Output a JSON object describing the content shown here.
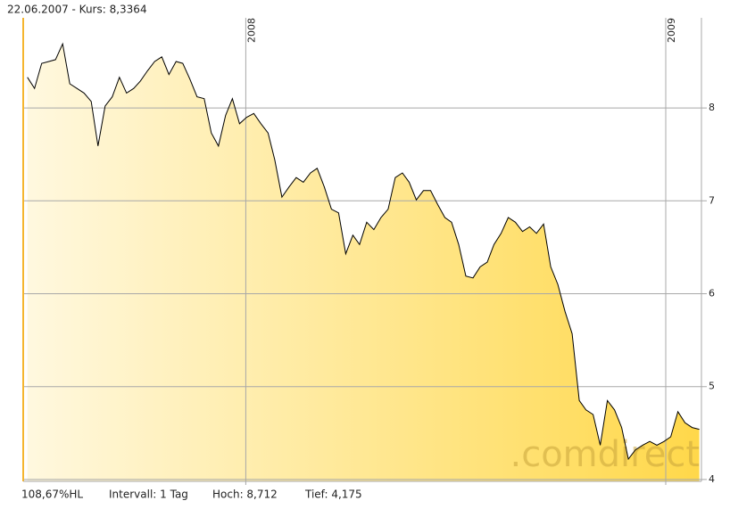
{
  "chart_data": {
    "type": "area",
    "header": "22.06.2007  -  Kurs: 8,3364",
    "footer": [
      "108,67%HL",
      "Intervall: 1 Tag",
      "Hoch: 8,712",
      "Tief: 4,175"
    ],
    "watermark": ".comdirect",
    "color": "#000000",
    "fill_colors": [
      "#fff8df",
      "#ffd84a"
    ],
    "grid": true,
    "xlim": [
      2007.47,
      2009.085
    ],
    "xticks": [
      2008,
      2009
    ],
    "ylim": [
      3.98,
      8.97
    ],
    "yticks": [
      4,
      5,
      6,
      7,
      8
    ],
    "x": [
      2007.48,
      2007.497,
      2007.514,
      2007.531,
      2007.547,
      2007.564,
      2007.581,
      2007.598,
      2007.615,
      2007.632,
      2007.648,
      2007.665,
      2007.682,
      2007.699,
      2007.716,
      2007.733,
      2007.749,
      2007.766,
      2007.783,
      2007.8,
      2007.817,
      2007.834,
      2007.85,
      2007.867,
      2007.884,
      2007.901,
      2007.918,
      2007.935,
      2007.952,
      2007.968,
      2007.985,
      2008.002,
      2008.019,
      2008.036,
      2008.053,
      2008.069,
      2008.086,
      2008.103,
      2008.12,
      2008.137,
      2008.154,
      2008.17,
      2008.187,
      2008.204,
      2008.221,
      2008.238,
      2008.255,
      2008.271,
      2008.288,
      2008.305,
      2008.322,
      2008.339,
      2008.356,
      2008.373,
      2008.389,
      2008.406,
      2008.423,
      2008.44,
      2008.457,
      2008.474,
      2008.49,
      2008.507,
      2008.524,
      2008.541,
      2008.558,
      2008.575,
      2008.591,
      2008.608,
      2008.625,
      2008.642,
      2008.659,
      2008.676,
      2008.692,
      2008.709,
      2008.726,
      2008.743,
      2008.76,
      2008.777,
      2008.794,
      2008.81,
      2008.827,
      2008.844,
      2008.861,
      2008.878,
      2008.895,
      2008.911,
      2008.928,
      2008.945,
      2008.962,
      2008.979,
      2008.996,
      2009.012,
      2009.029,
      2009.046,
      2009.063,
      2009.08
    ],
    "values": [
      8.33,
      8.21,
      8.48,
      8.5,
      8.52,
      8.69,
      8.26,
      8.21,
      8.16,
      8.07,
      7.59,
      8.02,
      8.12,
      8.33,
      8.16,
      8.21,
      8.29,
      8.4,
      8.5,
      8.55,
      8.36,
      8.5,
      8.48,
      8.31,
      8.12,
      8.1,
      7.73,
      7.59,
      7.92,
      8.1,
      7.83,
      7.9,
      7.94,
      7.83,
      7.73,
      7.44,
      7.04,
      7.15,
      7.25,
      7.2,
      7.3,
      7.35,
      7.15,
      6.91,
      6.87,
      6.43,
      6.63,
      6.53,
      6.77,
      6.69,
      6.82,
      6.91,
      7.25,
      7.3,
      7.2,
      7.01,
      7.11,
      7.11,
      6.96,
      6.82,
      6.77,
      6.53,
      6.19,
      6.17,
      6.29,
      6.34,
      6.53,
      6.65,
      6.82,
      6.77,
      6.67,
      6.72,
      6.65,
      6.75,
      6.29,
      6.1,
      5.81,
      5.57,
      4.85,
      4.75,
      4.7,
      4.37,
      4.85,
      4.75,
      4.56,
      4.22,
      4.32,
      4.37,
      4.41,
      4.37,
      4.41,
      4.46,
      4.73,
      4.61,
      4.56,
      4.54
    ]
  }
}
